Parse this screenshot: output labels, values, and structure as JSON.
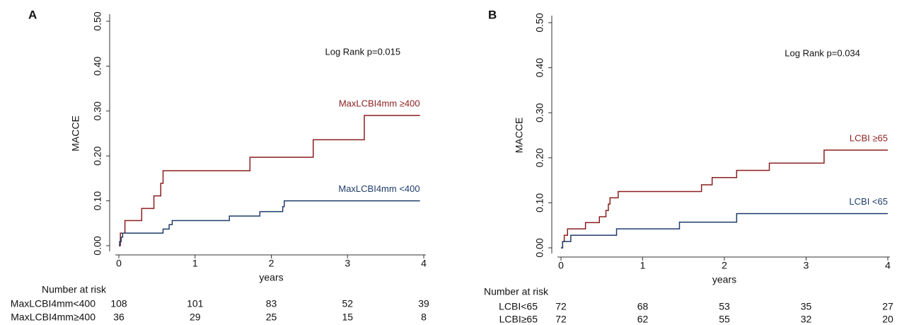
{
  "chart_data": [
    {
      "type": "step",
      "panel": "A",
      "annotation": "Log Rank p=0.015",
      "xlabel": "years",
      "ylabel": "MACCE",
      "xlim": [
        0,
        4
      ],
      "ylim": [
        0,
        0.5
      ],
      "xticks": [
        0,
        1,
        2,
        3,
        4
      ],
      "yticks": [
        {
          "value": 0,
          "label": "0.00"
        },
        {
          "value": 0.1,
          "label": "0.10"
        },
        {
          "value": 0.2,
          "label": "0.20"
        },
        {
          "value": 0.3,
          "label": "0.30"
        },
        {
          "value": 0.4,
          "label": "0.40"
        },
        {
          "value": 0.5,
          "label": "0.50"
        }
      ],
      "series": [
        {
          "name": "MaxLCBI4mm ≥400",
          "color": "#8b1e1e",
          "x": [
            0,
            0.02,
            0.08,
            0.3,
            0.46,
            0.55,
            0.58,
            1.72,
            2.55,
            3.22,
            3.95
          ],
          "values": [
            0,
            0.028,
            0.056,
            0.083,
            0.111,
            0.139,
            0.167,
            0.197,
            0.236,
            0.29,
            0.29
          ]
        },
        {
          "name": "MaxLCBI4mm <400",
          "color": "#1f3d6b",
          "x": [
            0,
            0.01,
            0.03,
            0.05,
            0.58,
            0.66,
            0.7,
            1.45,
            1.85,
            2.15,
            2.17,
            3.95
          ],
          "values": [
            0,
            0.009,
            0.019,
            0.028,
            0.037,
            0.047,
            0.056,
            0.066,
            0.076,
            0.087,
            0.1,
            0.1
          ]
        }
      ],
      "risk_table": {
        "title": "Number at risk",
        "rows": [
          {
            "name": "MaxLCBI4mm<400",
            "values": [
              108,
              101,
              83,
              52,
              39
            ]
          },
          {
            "name": "MaxLCBI4mm≥400",
            "values": [
              36,
              29,
              25,
              15,
              8
            ]
          }
        ]
      }
    },
    {
      "type": "step",
      "panel": "B",
      "annotation": "Log Rank p=0.034",
      "xlabel": "years",
      "ylabel": "MACCE",
      "xlim": [
        0,
        4
      ],
      "ylim": [
        0,
        0.5
      ],
      "xticks": [
        0,
        1,
        2,
        3,
        4
      ],
      "yticks": [
        {
          "value": 0,
          "label": "0.00"
        },
        {
          "value": 0.1,
          "label": "0.10"
        },
        {
          "value": 0.2,
          "label": "0.20"
        },
        {
          "value": 0.3,
          "label": "0.30"
        },
        {
          "value": 0.4,
          "label": "0.40"
        },
        {
          "value": 0.5,
          "label": "0.50"
        }
      ],
      "series": [
        {
          "name": "LCBI ≥65",
          "color": "#8b1e1e",
          "x": [
            0,
            0.02,
            0.04,
            0.08,
            0.3,
            0.47,
            0.55,
            0.58,
            0.6,
            0.7,
            1.72,
            1.85,
            2.15,
            2.55,
            3.22,
            4.0
          ],
          "values": [
            0,
            0.014,
            0.028,
            0.042,
            0.056,
            0.069,
            0.083,
            0.097,
            0.111,
            0.125,
            0.14,
            0.156,
            0.172,
            0.188,
            0.217,
            0.217
          ]
        },
        {
          "name": "LCBI <65",
          "color": "#1f3d6b",
          "x": [
            0,
            0.02,
            0.12,
            0.68,
            1.45,
            2.15,
            4.0
          ],
          "values": [
            0,
            0.014,
            0.028,
            0.042,
            0.057,
            0.076,
            0.076
          ]
        }
      ],
      "risk_table": {
        "title": "Number at risk",
        "rows": [
          {
            "name": "LCBI<65",
            "values": [
              72,
              68,
              53,
              35,
              27
            ]
          },
          {
            "name": "LCBI≥65",
            "values": [
              72,
              62,
              55,
              32,
              20
            ]
          }
        ]
      }
    }
  ]
}
